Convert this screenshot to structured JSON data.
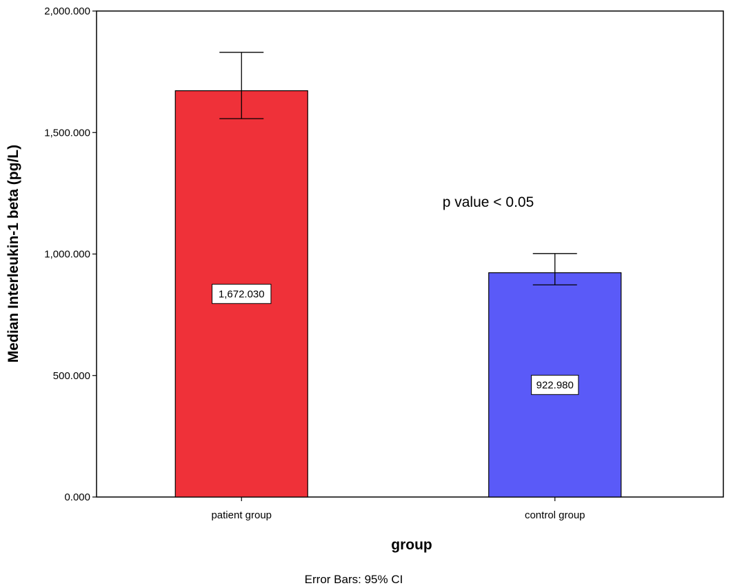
{
  "chart_data": {
    "type": "bar",
    "categories": [
      "patient group",
      "control group"
    ],
    "values": [
      1672.03,
      922.98
    ],
    "value_labels": [
      "1,672.030",
      "922.980"
    ],
    "error_bars": [
      {
        "low": 1557,
        "high": 1830
      },
      {
        "low": 873,
        "high": 1002
      }
    ],
    "bar_colors": [
      "#ef3139",
      "#5a5af8"
    ],
    "xlabel": "group",
    "ylabel": "Median Interleukin-1 beta (pg/L)",
    "ylim": [
      0,
      2000
    ],
    "yticks": [
      0,
      500,
      1000,
      1500,
      2000
    ],
    "ytick_labels": [
      "0.000",
      "500.000",
      "1,000.000",
      "1,500.000",
      "2,000.000"
    ],
    "annotation": "p value < 0.05",
    "footnote": "Error Bars: 95% CI",
    "grid": false
  }
}
